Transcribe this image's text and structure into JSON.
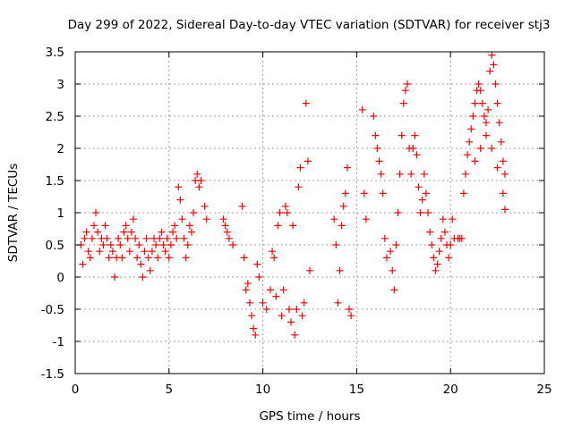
{
  "chart_data": {
    "type": "scatter",
    "title": "Day 299 of 2022, Sidereal Day-to-day VTEC variation (SDTVAR) for receiver stj3",
    "xlabel": "GPS time / hours",
    "ylabel": "SDTVAR / TECUs",
    "xlim": [
      0,
      25
    ],
    "ylim": [
      -1.5,
      3.5
    ],
    "x_ticks": [
      0,
      5,
      10,
      15,
      20,
      25
    ],
    "y_ticks": [
      -1.5,
      -1,
      -0.5,
      0,
      0.5,
      1,
      1.5,
      2,
      2.5,
      3,
      3.5
    ],
    "x_tick_labels": [
      "0",
      "5",
      "10",
      "15",
      "20",
      "25"
    ],
    "y_tick_labels": [
      "-1.5",
      "-1",
      "-0.5",
      "0",
      "0.5",
      "1",
      "1.5",
      "2",
      "2.5",
      "3",
      "3.5"
    ],
    "grid": true,
    "marker": "+",
    "series": [
      {
        "name": "SDTVAR",
        "color": "#ff0000",
        "points": [
          [
            0.3,
            0.5
          ],
          [
            0.4,
            0.2
          ],
          [
            0.5,
            0.6
          ],
          [
            0.6,
            0.7
          ],
          [
            0.7,
            0.4
          ],
          [
            0.8,
            0.3
          ],
          [
            0.9,
            0.6
          ],
          [
            1.0,
            0.8
          ],
          [
            1.1,
            1.0
          ],
          [
            1.2,
            0.7
          ],
          [
            1.3,
            0.4
          ],
          [
            1.4,
            0.6
          ],
          [
            1.5,
            0.5
          ],
          [
            1.6,
            0.8
          ],
          [
            1.7,
            0.6
          ],
          [
            1.8,
            0.3
          ],
          [
            1.9,
            0.5
          ],
          [
            2.0,
            0.4
          ],
          [
            2.1,
            0.0
          ],
          [
            2.2,
            0.3
          ],
          [
            2.3,
            0.6
          ],
          [
            2.4,
            0.5
          ],
          [
            2.5,
            0.3
          ],
          [
            2.6,
            0.7
          ],
          [
            2.7,
            0.8
          ],
          [
            2.8,
            0.6
          ],
          [
            2.9,
            0.4
          ],
          [
            3.0,
            0.7
          ],
          [
            3.1,
            0.9
          ],
          [
            3.2,
            0.6
          ],
          [
            3.3,
            0.3
          ],
          [
            3.4,
            0.5
          ],
          [
            3.5,
            0.2
          ],
          [
            3.6,
            0.0
          ],
          [
            3.7,
            0.4
          ],
          [
            3.8,
            0.6
          ],
          [
            3.9,
            0.3
          ],
          [
            4.0,
            0.1
          ],
          [
            4.1,
            0.4
          ],
          [
            4.2,
            0.6
          ],
          [
            4.3,
            0.5
          ],
          [
            4.4,
            0.3
          ],
          [
            4.5,
            0.6
          ],
          [
            4.6,
            0.7
          ],
          [
            4.7,
            0.5
          ],
          [
            4.8,
            0.4
          ],
          [
            4.9,
            0.6
          ],
          [
            5.0,
            0.3
          ],
          [
            5.1,
            0.5
          ],
          [
            5.2,
            0.7
          ],
          [
            5.3,
            0.8
          ],
          [
            5.4,
            0.6
          ],
          [
            5.5,
            1.4
          ],
          [
            5.6,
            1.2
          ],
          [
            5.7,
            0.9
          ],
          [
            5.8,
            0.6
          ],
          [
            5.9,
            0.3
          ],
          [
            6.0,
            0.5
          ],
          [
            6.1,
            0.8
          ],
          [
            6.2,
            0.7
          ],
          [
            6.3,
            1.0
          ],
          [
            6.4,
            1.5
          ],
          [
            6.5,
            1.6
          ],
          [
            6.6,
            1.4
          ],
          [
            6.7,
            1.5
          ],
          [
            6.9,
            1.1
          ],
          [
            7.0,
            0.9
          ],
          [
            7.9,
            0.9
          ],
          [
            8.0,
            0.8
          ],
          [
            8.1,
            0.7
          ],
          [
            8.2,
            0.6
          ],
          [
            8.4,
            0.5
          ],
          [
            8.9,
            1.1
          ],
          [
            9.0,
            0.3
          ],
          [
            9.1,
            -0.2
          ],
          [
            9.2,
            -0.1
          ],
          [
            9.3,
            -0.4
          ],
          [
            9.4,
            -0.6
          ],
          [
            9.5,
            -0.8
          ],
          [
            9.6,
            -0.9
          ],
          [
            9.7,
            0.2
          ],
          [
            9.8,
            0.0
          ],
          [
            10.0,
            -0.4
          ],
          [
            10.2,
            -0.5
          ],
          [
            10.4,
            -0.2
          ],
          [
            10.5,
            0.4
          ],
          [
            10.6,
            0.3
          ],
          [
            10.7,
            -0.3
          ],
          [
            10.8,
            0.8
          ],
          [
            10.9,
            1.0
          ],
          [
            11.0,
            -0.6
          ],
          [
            11.1,
            -0.2
          ],
          [
            11.2,
            1.1
          ],
          [
            11.3,
            1.0
          ],
          [
            11.4,
            -0.5
          ],
          [
            11.5,
            -0.7
          ],
          [
            11.6,
            0.8
          ],
          [
            11.7,
            -0.9
          ],
          [
            11.8,
            -0.5
          ],
          [
            11.9,
            1.4
          ],
          [
            12.0,
            1.7
          ],
          [
            12.1,
            -0.6
          ],
          [
            12.2,
            -0.4
          ],
          [
            12.3,
            2.7
          ],
          [
            12.4,
            1.8
          ],
          [
            12.5,
            0.1
          ],
          [
            13.8,
            0.9
          ],
          [
            13.9,
            0.5
          ],
          [
            14.0,
            -0.4
          ],
          [
            14.1,
            0.1
          ],
          [
            14.2,
            0.8
          ],
          [
            14.3,
            1.1
          ],
          [
            14.4,
            1.3
          ],
          [
            14.5,
            1.7
          ],
          [
            14.6,
            -0.5
          ],
          [
            14.7,
            -0.6
          ],
          [
            15.3,
            2.6
          ],
          [
            15.4,
            1.3
          ],
          [
            15.5,
            0.9
          ],
          [
            15.9,
            2.5
          ],
          [
            16.0,
            2.2
          ],
          [
            16.1,
            2.0
          ],
          [
            16.2,
            1.8
          ],
          [
            16.3,
            1.6
          ],
          [
            16.4,
            1.3
          ],
          [
            16.5,
            0.6
          ],
          [
            16.6,
            0.3
          ],
          [
            16.8,
            0.4
          ],
          [
            16.9,
            0.1
          ],
          [
            17.0,
            -0.2
          ],
          [
            17.1,
            0.5
          ],
          [
            17.2,
            1.0
          ],
          [
            17.3,
            1.6
          ],
          [
            17.4,
            2.2
          ],
          [
            17.5,
            2.7
          ],
          [
            17.6,
            2.9
          ],
          [
            17.7,
            3.0
          ],
          [
            17.8,
            2.0
          ],
          [
            17.9,
            1.6
          ],
          [
            18.0,
            2.0
          ],
          [
            18.1,
            2.2
          ],
          [
            18.2,
            1.9
          ],
          [
            18.3,
            1.4
          ],
          [
            18.4,
            1.0
          ],
          [
            18.5,
            1.2
          ],
          [
            18.6,
            1.6
          ],
          [
            18.7,
            1.3
          ],
          [
            18.8,
            1.0
          ],
          [
            18.9,
            0.7
          ],
          [
            19.0,
            0.5
          ],
          [
            19.1,
            0.3
          ],
          [
            19.2,
            0.1
          ],
          [
            19.3,
            0.2
          ],
          [
            19.4,
            0.4
          ],
          [
            19.5,
            0.6
          ],
          [
            19.6,
            0.9
          ],
          [
            19.7,
            0.7
          ],
          [
            19.8,
            0.5
          ],
          [
            19.9,
            0.3
          ],
          [
            20.0,
            0.5
          ],
          [
            20.1,
            0.9
          ],
          [
            20.2,
            0.6
          ],
          [
            20.4,
            0.6
          ],
          [
            20.5,
            0.6
          ],
          [
            20.6,
            0.6
          ],
          [
            20.7,
            1.3
          ],
          [
            20.8,
            1.6
          ],
          [
            20.9,
            1.9
          ],
          [
            21.0,
            2.1
          ],
          [
            21.1,
            2.3
          ],
          [
            21.2,
            2.5
          ],
          [
            21.3,
            2.7
          ],
          [
            21.4,
            2.9
          ],
          [
            21.5,
            3.0
          ],
          [
            21.6,
            2.9
          ],
          [
            21.7,
            2.7
          ],
          [
            21.8,
            2.5
          ],
          [
            21.9,
            2.4
          ],
          [
            22.0,
            2.6
          ],
          [
            22.1,
            3.2
          ],
          [
            22.2,
            3.45
          ],
          [
            22.3,
            3.3
          ],
          [
            22.4,
            3.0
          ],
          [
            22.5,
            2.7
          ],
          [
            22.6,
            2.4
          ],
          [
            22.7,
            2.1
          ],
          [
            22.8,
            1.8
          ],
          [
            22.9,
            1.6
          ],
          [
            21.3,
            1.8
          ],
          [
            21.6,
            2.0
          ],
          [
            21.9,
            2.2
          ],
          [
            22.2,
            2.0
          ],
          [
            22.5,
            1.7
          ],
          [
            22.8,
            1.3
          ],
          [
            22.9,
            1.05
          ]
        ]
      }
    ]
  }
}
